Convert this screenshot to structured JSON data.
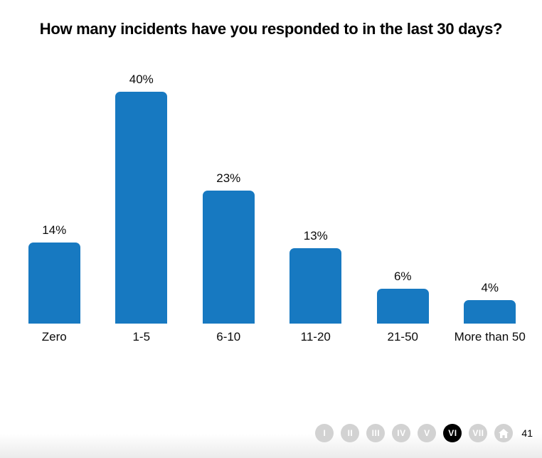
{
  "title": "How many incidents have you responded to in the last 30 days?",
  "chart_data": {
    "type": "bar",
    "title": "How many incidents have you responded to in the last 30 days?",
    "categories": [
      "Zero",
      "1-5",
      "6-10",
      "11-20",
      "21-50",
      "More than 50"
    ],
    "values": [
      14,
      40,
      23,
      13,
      6,
      4
    ],
    "value_labels": [
      "14%",
      "40%",
      "23%",
      "13%",
      "6%",
      "4%"
    ],
    "xlabel": "",
    "ylabel": "",
    "ylim": [
      0,
      45
    ],
    "unit": "%",
    "grid": false,
    "legend": "none",
    "bar_color": "#1779c1"
  },
  "pagination": {
    "items": [
      {
        "label": "I"
      },
      {
        "label": "II"
      },
      {
        "label": "III"
      },
      {
        "label": "IV"
      },
      {
        "label": "V"
      },
      {
        "label": "VI"
      },
      {
        "label": "VII"
      },
      {
        "icon": "home-icon"
      }
    ],
    "active_index": 5,
    "page_number": "41"
  }
}
